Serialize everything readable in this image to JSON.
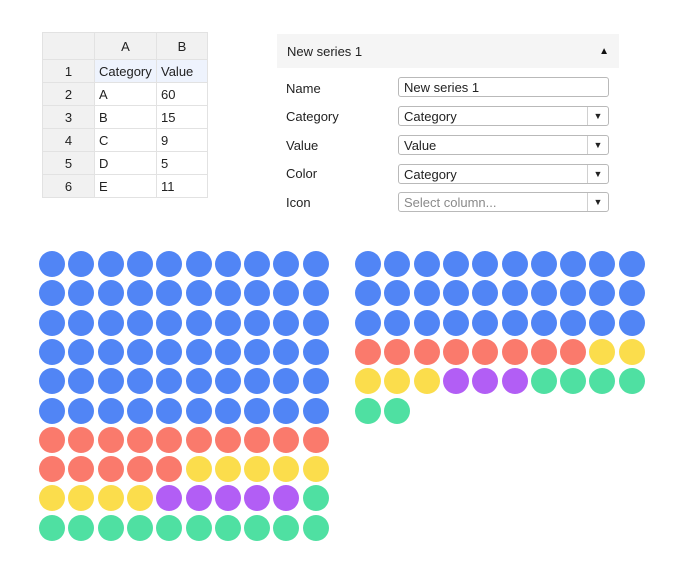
{
  "spreadsheet": {
    "columns": [
      "A",
      "B"
    ],
    "rows": [
      {
        "num": "1",
        "a": "Category",
        "b": "Value"
      },
      {
        "num": "2",
        "a": "A",
        "b": "60"
      },
      {
        "num": "3",
        "a": "B",
        "b": "15"
      },
      {
        "num": "4",
        "a": "C",
        "b": "9"
      },
      {
        "num": "5",
        "a": "D",
        "b": "5"
      },
      {
        "num": "6",
        "a": "E",
        "b": "11"
      }
    ]
  },
  "panel": {
    "title": "New series 1",
    "caret_icon": "triangle-up-icon",
    "fields": {
      "name": {
        "label": "Name",
        "value": "New series 1"
      },
      "category": {
        "label": "Category",
        "value": "Category"
      },
      "value": {
        "label": "Value",
        "value": "Value"
      },
      "color": {
        "label": "Color",
        "value": "Category"
      },
      "icon": {
        "label": "Icon",
        "placeholder": "Select column..."
      }
    }
  },
  "colors": {
    "A": "#5185f5",
    "B": "#fa7a6c",
    "C": "#fbdd4c",
    "D": "#b25ef5",
    "E": "#4fe0a2"
  },
  "chart_data": [
    {
      "type": "waffle",
      "grid": "10x10",
      "categories": [
        "A",
        "B",
        "C",
        "D",
        "E"
      ],
      "values": [
        60,
        15,
        9,
        5,
        11
      ]
    },
    {
      "type": "waffle",
      "grid": "10 per row",
      "categories": [
        "A",
        "B",
        "C",
        "D",
        "E"
      ],
      "values": [
        30,
        8,
        5,
        3,
        6
      ]
    }
  ]
}
